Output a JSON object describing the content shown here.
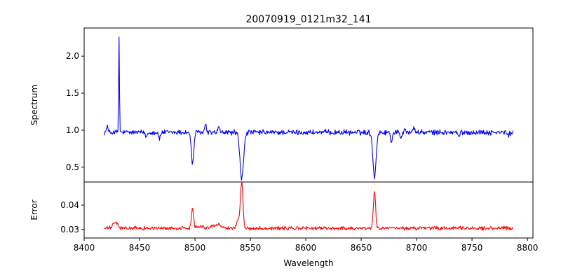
{
  "colors": {
    "spectrum": "#0000ff",
    "error": "#ff0000",
    "axes": "#000000",
    "background": "#ffffff"
  },
  "chart_data": {
    "type": "line",
    "title": "20070919_0121m32_141",
    "xlabel": "Wavelength",
    "xlim": [
      8400,
      8805
    ],
    "xticks": [
      8400,
      8450,
      8500,
      8550,
      8600,
      8650,
      8700,
      8750,
      8800
    ],
    "xtick_labels": [
      "8400",
      "8450",
      "8500",
      "8550",
      "8600",
      "8650",
      "8700",
      "8750",
      "8800"
    ],
    "x_start": 8418,
    "x_end": 8787,
    "grid": false,
    "panels": [
      {
        "name": "spectrum",
        "ylabel": "Spectrum",
        "ylim": [
          0.3,
          2.38
        ],
        "yticks": [
          0.5,
          1.0,
          1.5,
          2.0
        ],
        "ytick_labels": [
          "0.5",
          "1.0",
          "1.5",
          "2.0"
        ],
        "series": [
          {
            "color": "#0000ff",
            "baseline": 0.97,
            "noise": 0.028,
            "features": [
              {
                "center": 8431.5,
                "amplitude": 1.3,
                "width": 0.35
              },
              {
                "center": 8420.8,
                "amplitude": 0.09,
                "width": 0.6
              },
              {
                "center": 8497.8,
                "amplitude": -0.43,
                "width": 1.1
              },
              {
                "center": 8542.2,
                "amplitude": -0.63,
                "width": 1.6
              },
              {
                "center": 8662.0,
                "amplitude": -0.6,
                "width": 1.4
              },
              {
                "center": 8509.5,
                "amplitude": 0.1,
                "width": 0.8
              },
              {
                "center": 8521.5,
                "amplitude": 0.07,
                "width": 0.8
              },
              {
                "center": 8468.0,
                "amplitude": -0.09,
                "width": 0.8
              },
              {
                "center": 8456.0,
                "amplitude": -0.06,
                "width": 0.8
              },
              {
                "center": 8677.3,
                "amplitude": -0.14,
                "width": 0.7
              },
              {
                "center": 8686.0,
                "amplitude": -0.07,
                "width": 0.8
              },
              {
                "center": 8689.5,
                "amplitude": 0.07,
                "width": 0.7
              },
              {
                "center": 8697.5,
                "amplitude": 0.08,
                "width": 0.7
              },
              {
                "center": 8738.0,
                "amplitude": -0.06,
                "width": 0.8
              },
              {
                "center": 8783.0,
                "amplitude": -0.05,
                "width": 0.8
              }
            ]
          }
        ]
      },
      {
        "name": "error",
        "ylabel": "Error",
        "ylim": [
          0.0265,
          0.0495
        ],
        "yticks": [
          0.03,
          0.04
        ],
        "ytick_labels": [
          "0.03",
          "0.04"
        ],
        "series": [
          {
            "color": "#ff0000",
            "baseline": 0.0305,
            "noise": 0.0006,
            "features": [
              {
                "center": 8497.8,
                "amplitude": 0.0088,
                "width": 0.9
              },
              {
                "center": 8542.2,
                "amplitude": 0.0185,
                "width": 1.1
              },
              {
                "center": 8539.0,
                "amplitude": 0.0035,
                "width": 1.5
              },
              {
                "center": 8662.0,
                "amplitude": 0.015,
                "width": 1.0
              },
              {
                "center": 8428.0,
                "amplitude": 0.0025,
                "width": 2.0
              },
              {
                "center": 8520.0,
                "amplitude": 0.0015,
                "width": 4.0
              },
              {
                "center": 8504.0,
                "amplitude": 0.001,
                "width": 3.0
              }
            ]
          }
        ]
      }
    ]
  }
}
